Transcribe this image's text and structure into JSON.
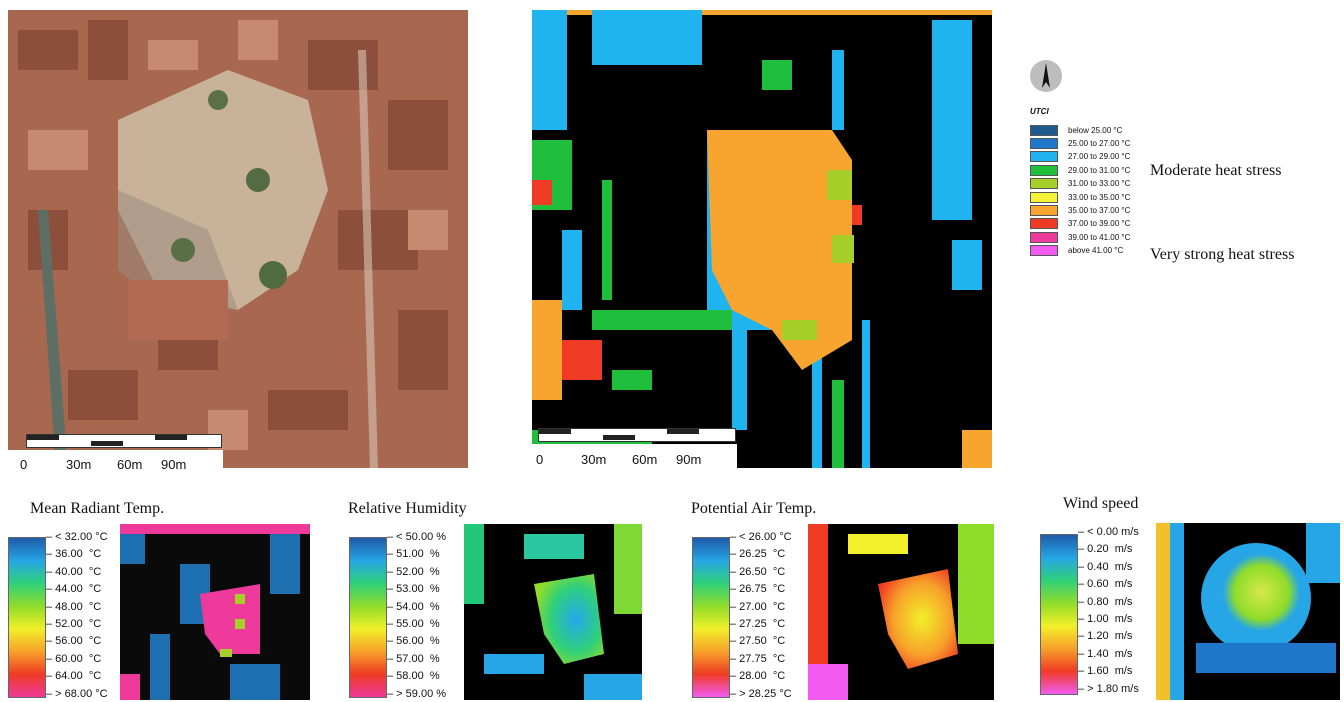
{
  "aerial": {
    "scale_labels": [
      "0",
      "30m",
      "60m",
      "90m"
    ]
  },
  "utci_map": {
    "scale_labels": [
      "0",
      "30m",
      "60m",
      "90m"
    ]
  },
  "utci_legend": {
    "title": "UTCI",
    "entries": [
      {
        "label": "below 25.00 °C",
        "color": "#1f5a8f"
      },
      {
        "label": "25.00 to 27.00 °C",
        "color": "#1f77c9"
      },
      {
        "label": "27.00 to 29.00 °C",
        "color": "#1fb3f0"
      },
      {
        "label": "29.00 to 31.00 °C",
        "color": "#1fbe3c"
      },
      {
        "label": "31.00 to 33.00 °C",
        "color": "#a6cf2a"
      },
      {
        "label": "33.00 to 35.00 °C",
        "color": "#f6f23a"
      },
      {
        "label": "35.00 to 37.00 °C",
        "color": "#f7a52e"
      },
      {
        "label": "37.00 to 39.00 °C",
        "color": "#ef3b24"
      },
      {
        "label": "39.00 to 41.00 °C",
        "color": "#ee3a9a"
      },
      {
        "label": "above 41.00 °C",
        "color": "#f25bf0"
      }
    ],
    "moderate": "Moderate heat stress",
    "very_strong": "Very strong  heat stress"
  },
  "small_maps": [
    {
      "title": "Mean Radiant Temp.",
      "labels": [
        "< 32.00 °C",
        "36.00  °C",
        "40.00  °C",
        "44.00  °C",
        "48.00  °C",
        "52.00  °C",
        "56.00  °C",
        "60.00  °C",
        "64.00  °C",
        "> 68.00 °C"
      ]
    },
    {
      "title": "Relative Humidity",
      "labels": [
        "< 50.00 %",
        "51.00  %",
        "52.00  %",
        "53.00  %",
        "54.00  %",
        "55.00  %",
        "56.00  %",
        "57.00  %",
        "58.00  %",
        "> 59.00 %"
      ]
    },
    {
      "title": "Potential Air Temp.",
      "labels": [
        "< 26.00 °C",
        "26.25  °C",
        "26.50  °C",
        "26.75  °C",
        "27.00  °C",
        "27.25  °C",
        "27.50  °C",
        "27.75  °C",
        "28.00  °C",
        "> 28.25 °C"
      ]
    },
    {
      "title": "Wind speed",
      "labels": [
        "< 0.00 m/s",
        "0.20  m/s",
        "0.40  m/s",
        "0.60  m/s",
        "0.80  m/s",
        "1.00  m/s",
        "1.20  m/s",
        "1.40  m/s",
        "1.60  m/s",
        "> 1.80 m/s"
      ]
    }
  ]
}
